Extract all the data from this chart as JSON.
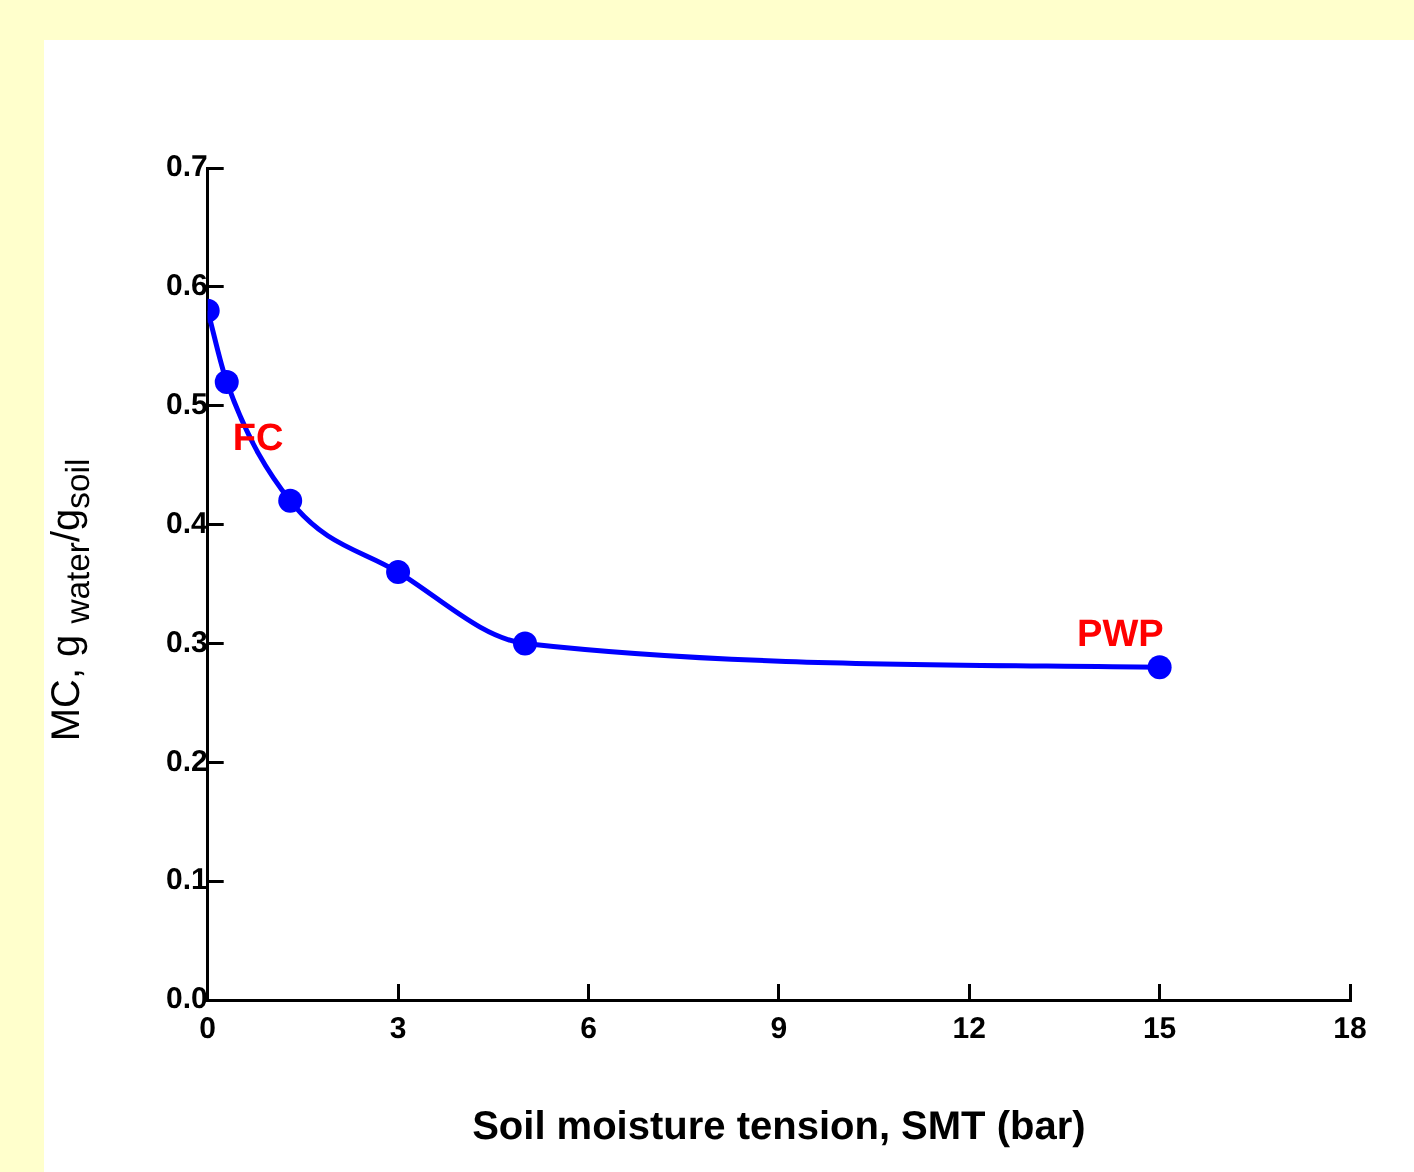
{
  "chart_data": {
    "type": "line",
    "xlabel": "Soil moisture tension, SMT (bar)",
    "ylabel": "MC, g $_{water}$/g$_{soil}$",
    "x": [
      0,
      0.3,
      1.3,
      3,
      5,
      15
    ],
    "series": [
      {
        "color": "#0000ff",
        "values": [
          0.58,
          0.52,
          0.42,
          0.36,
          0.3,
          0.28
        ]
      }
    ],
    "xlim": [
      0,
      18
    ],
    "xticks": [
      0,
      3,
      6,
      9,
      12,
      15,
      18
    ],
    "ylim": [
      0,
      0.7
    ],
    "yticks": [
      {
        "value": 0,
        "label": "0.0"
      },
      0.1,
      0.2,
      0.3,
      0.4,
      0.5,
      0.6,
      0.7
    ],
    "marker": "circle",
    "grid": false,
    "legend": false,
    "annotations": [
      {
        "text": "FC",
        "x": 0.3,
        "y": 0.52
      },
      {
        "text": "PWP",
        "x": 15,
        "y": 0.28
      }
    ]
  }
}
